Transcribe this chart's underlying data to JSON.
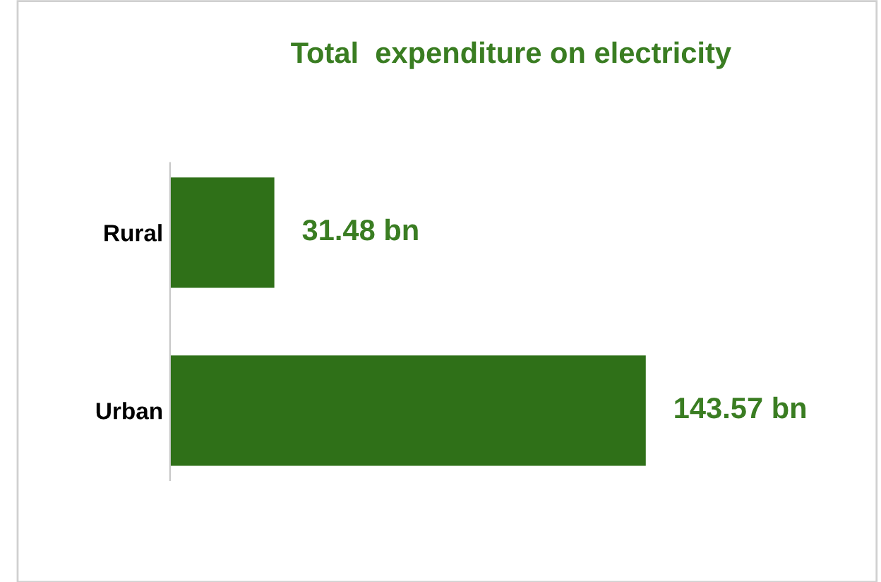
{
  "chart_data": {
    "type": "bar",
    "orientation": "horizontal",
    "title": "Total  expenditure on electricity",
    "categories": [
      "Rural",
      "Urban"
    ],
    "values": [
      31.48,
      143.57
    ],
    "value_labels": [
      "31.48 bn",
      "143.57 bn"
    ],
    "color": "#2f7018",
    "tick_labels": "y",
    "grid": false,
    "legend": false
  }
}
